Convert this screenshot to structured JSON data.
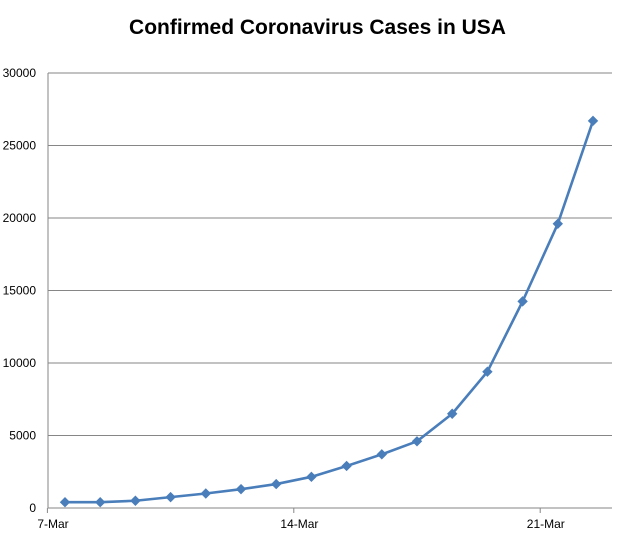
{
  "chart_data": {
    "type": "line",
    "title": "Confirmed Coronavirus Cases in USA",
    "xlabel": "",
    "ylabel": "",
    "ylim": [
      0,
      30000
    ],
    "yticks": [
      "0",
      "5000",
      "10000",
      "15000",
      "20000",
      "25000",
      "30000"
    ],
    "xticks": [
      "7-Mar",
      "14-Mar",
      "21-Mar"
    ],
    "grid": true,
    "legend": "none",
    "line_color": "#4a7ebb",
    "x": [
      "7-Mar",
      "8-Mar",
      "9-Mar",
      "10-Mar",
      "11-Mar",
      "12-Mar",
      "13-Mar",
      "14-Mar",
      "15-Mar",
      "16-Mar",
      "17-Mar",
      "18-Mar",
      "19-Mar",
      "20-Mar",
      "21-Mar",
      "22-Mar"
    ],
    "series": [
      {
        "values": [
          400,
          400,
          500,
          750,
          1000,
          1300,
          1650,
          2150,
          2900,
          3700,
          4600,
          6500,
          9400,
          14250,
          19600,
          26700
        ]
      }
    ]
  }
}
